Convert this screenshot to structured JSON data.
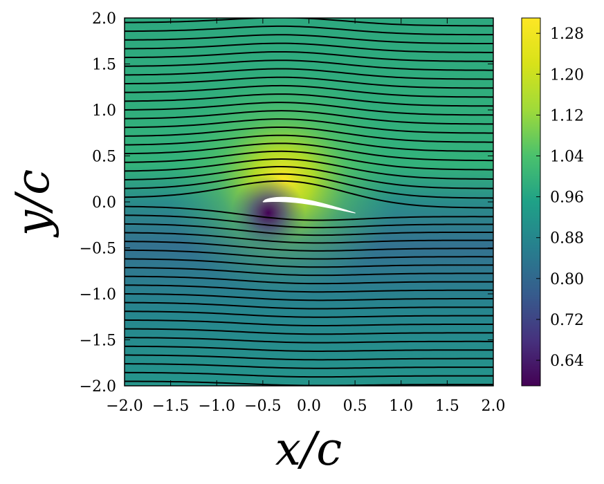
{
  "chart_data": {
    "type": "heatmap",
    "title": "",
    "xlabel": "x/c",
    "ylabel": "y/c",
    "xlim": [
      -2.0,
      2.0
    ],
    "ylim": [
      -2.0,
      2.0
    ],
    "x_ticks": [
      -2.0,
      -1.5,
      -1.0,
      -0.5,
      0.0,
      0.5,
      1.0,
      1.5,
      2.0
    ],
    "x_tick_labels": [
      "−2.0",
      "−1.5",
      "−1.0",
      "−0.5",
      "0.0",
      "0.5",
      "1.0",
      "1.5",
      "2.0"
    ],
    "y_ticks": [
      2.0,
      1.5,
      1.0,
      0.5,
      0.0,
      -0.5,
      -1.0,
      -1.5,
      -2.0
    ],
    "y_tick_labels": [
      "2.0",
      "1.5",
      "1.0",
      "0.5",
      "0.0",
      "−0.5",
      "−1.0",
      "−1.5",
      "−2.0"
    ],
    "colorbar": {
      "min": 0.59,
      "max": 1.31,
      "ticks": [
        1.28,
        1.2,
        1.12,
        1.04,
        0.96,
        0.88,
        0.8,
        0.72,
        0.64
      ],
      "tick_labels": [
        "1.28",
        "1.20",
        "1.12",
        "1.04",
        "0.96",
        "0.88",
        "0.80",
        "0.72",
        "0.64"
      ],
      "colormap": "viridis"
    },
    "airfoil": {
      "leading_edge": [
        -0.5,
        0.0
      ],
      "trailing_edge": [
        0.5,
        -0.12
      ]
    },
    "streamlines": {
      "count": 42,
      "color": "#000000"
    },
    "grid": false,
    "legend": "none"
  }
}
